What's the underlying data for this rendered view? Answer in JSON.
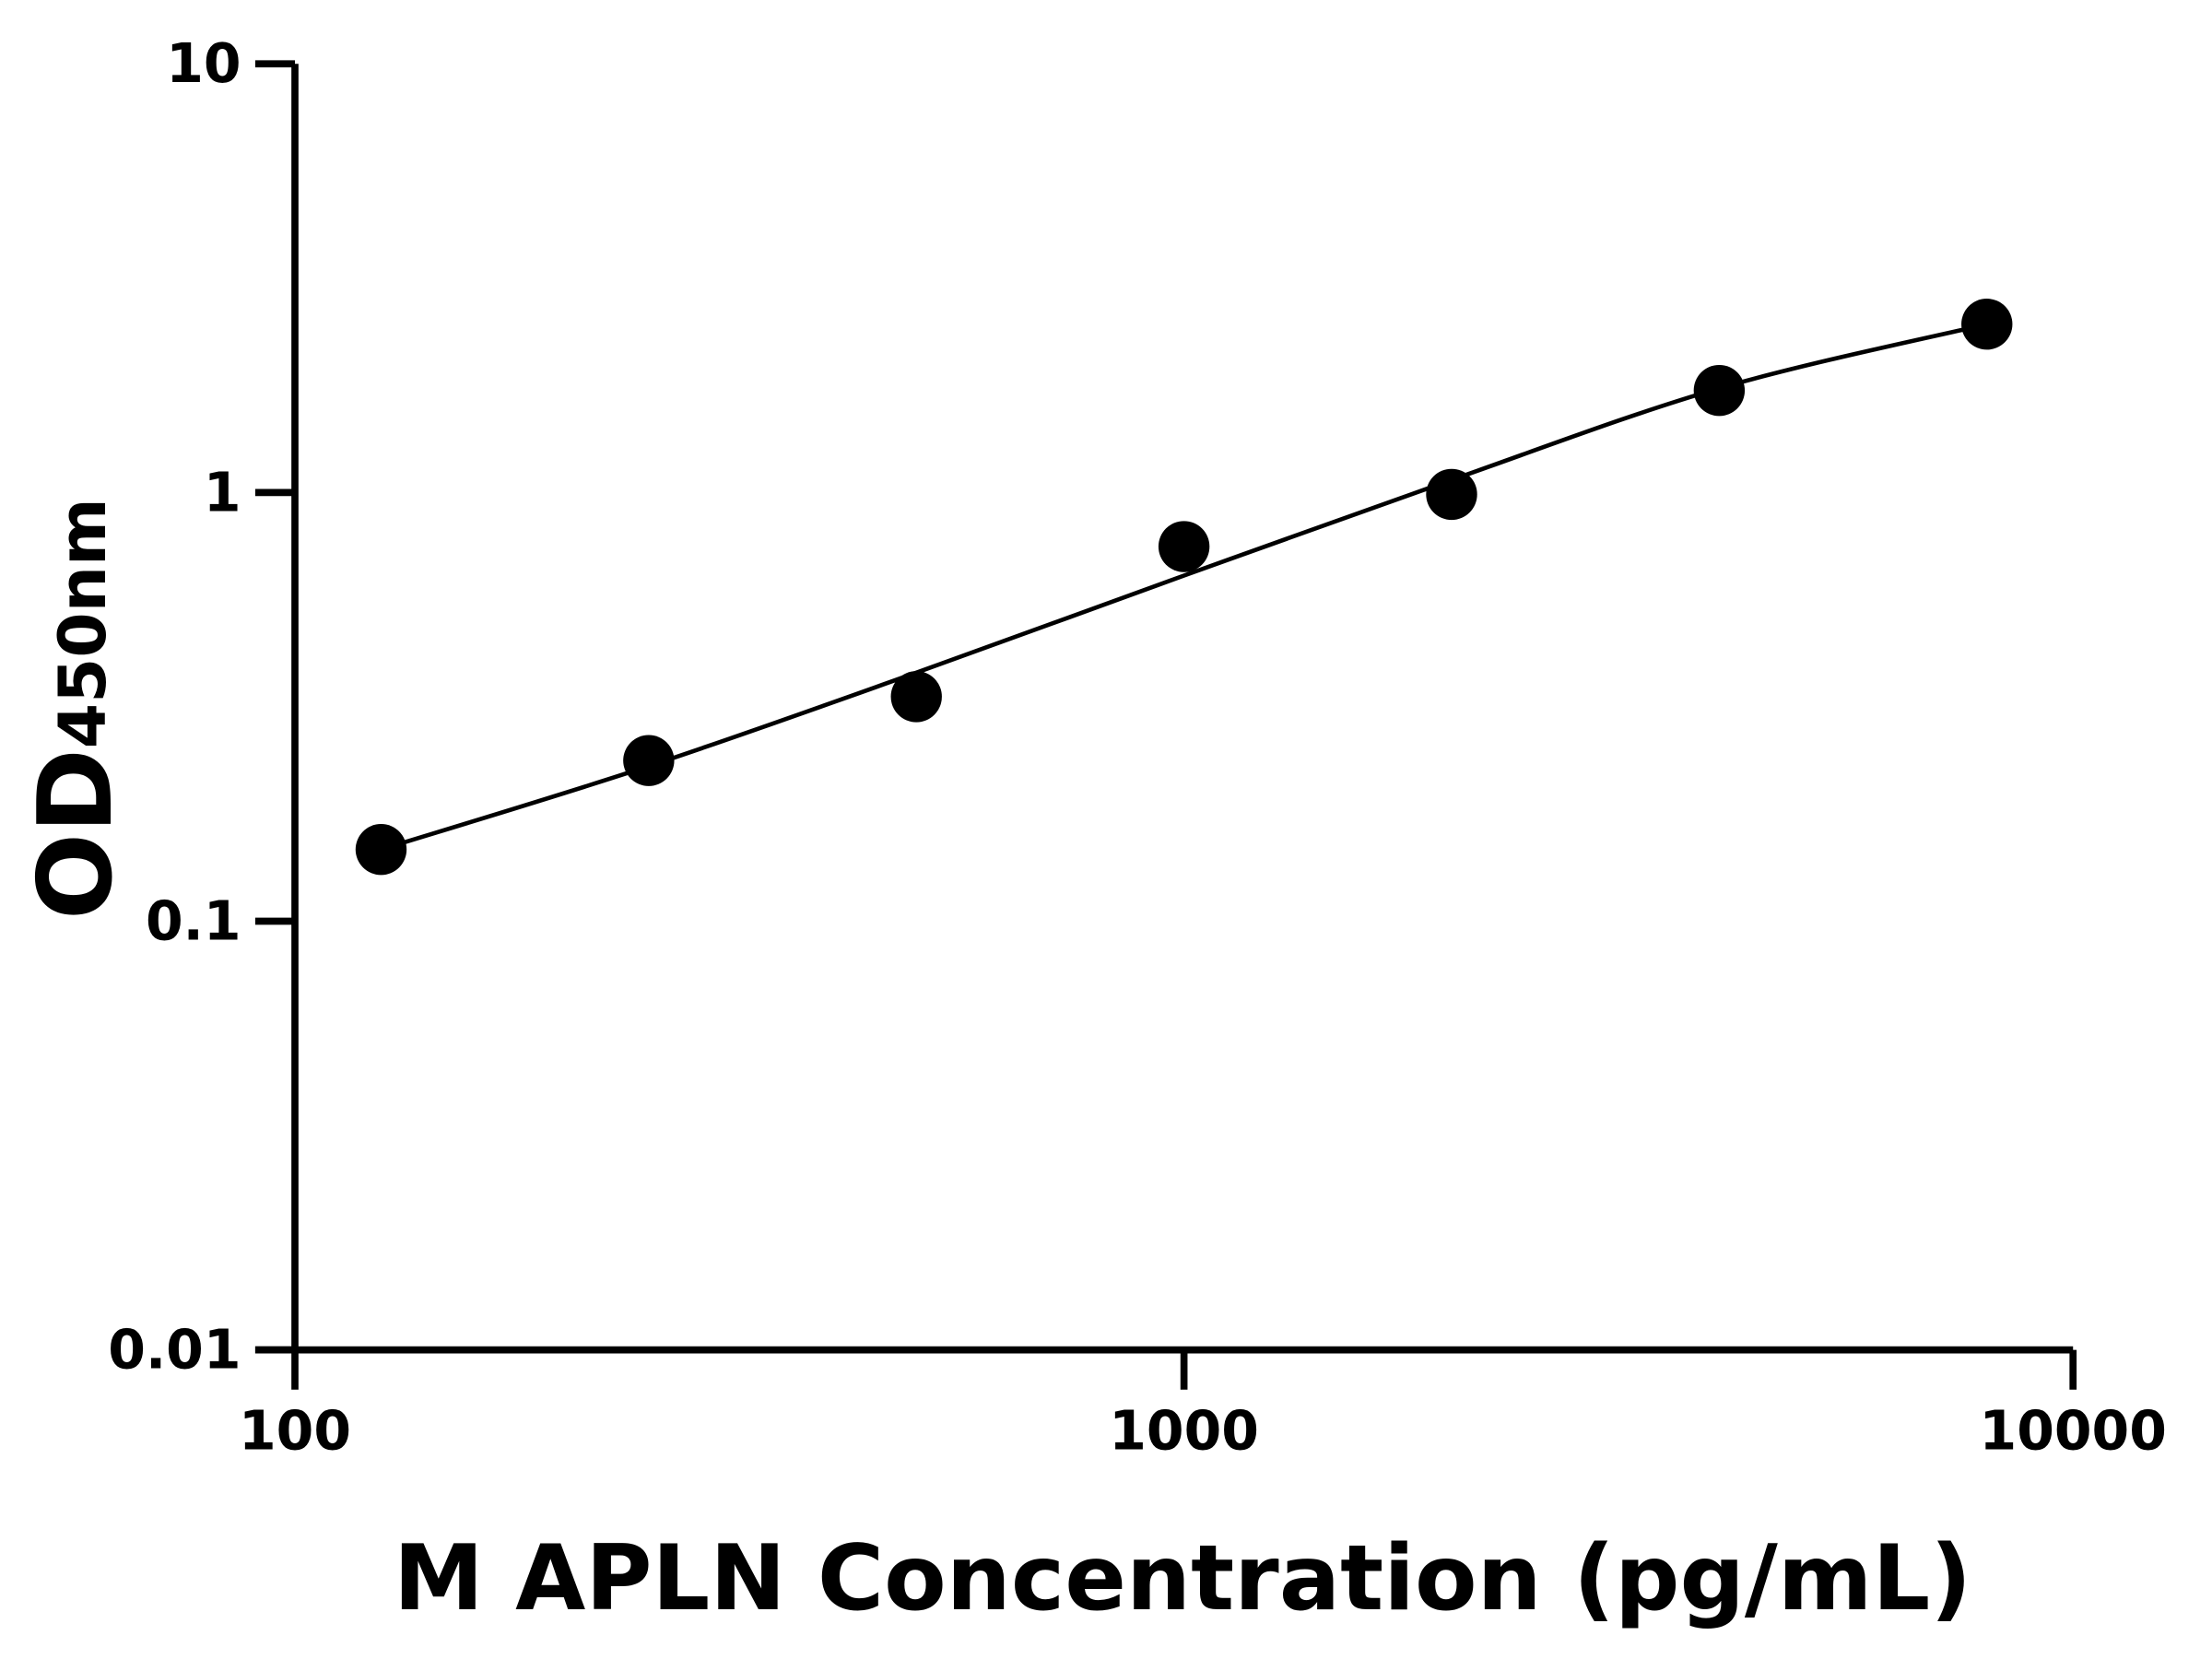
{
  "chart_data": {
    "type": "scatter",
    "title": "",
    "xlabel": "M APLN Concentration (pg/mL)",
    "ylabel": "OD",
    "ylabel_subscript": "450nm",
    "xscale": "log",
    "yscale": "log",
    "xlim": [
      100,
      10000
    ],
    "ylim": [
      0.01,
      10
    ],
    "xticks": [
      100,
      1000,
      10000
    ],
    "xtick_labels": [
      "100",
      "1000",
      "10000"
    ],
    "yticks": [
      0.01,
      0.1,
      1,
      10
    ],
    "ytick_labels": [
      "0.01",
      "0.1",
      "1",
      "10"
    ],
    "grid": false,
    "marker_color": "#000000",
    "line_color": "#000000",
    "points": {
      "x": [
        125,
        250,
        500,
        1000,
        2000,
        4000,
        8000
      ],
      "y": [
        0.147,
        0.237,
        0.334,
        0.748,
        0.99,
        1.73,
        2.47
      ]
    },
    "fit_curve": {
      "x": [
        125,
        250,
        500,
        1000,
        2000,
        4000,
        8000
      ],
      "y": [
        0.147,
        0.23,
        0.38,
        0.64,
        1.07,
        1.75,
        2.47
      ]
    }
  }
}
